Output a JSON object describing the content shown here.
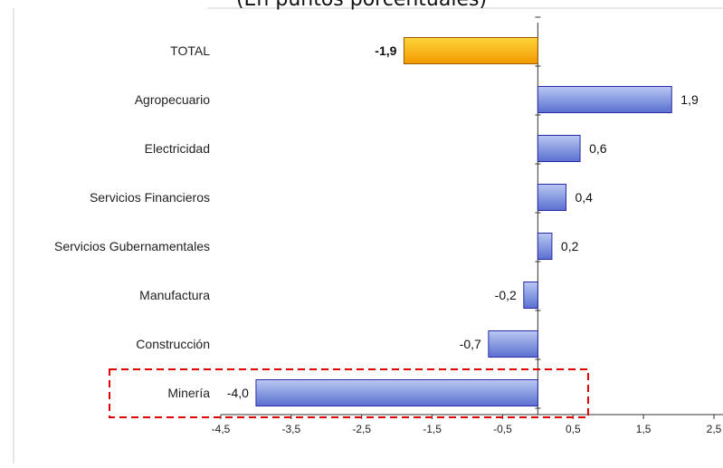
{
  "chart_data": {
    "type": "bar",
    "orientation": "horizontal",
    "title": "(En puntos porcentuales)",
    "categories": [
      "TOTAL",
      "Agropecuario",
      "Electricidad",
      "Servicios Financieros",
      "Servicios Gubernamentales",
      "Manufactura",
      "Construcción",
      "Minería"
    ],
    "values": [
      -1.9,
      1.9,
      0.6,
      0.4,
      0.2,
      -0.2,
      -0.7,
      -4.0
    ],
    "value_labels": [
      "-1,9",
      "1,9",
      "0,6",
      "0,4",
      "0,2",
      "-0,2",
      "-0,7",
      "-4,0"
    ],
    "highlight_category": "TOTAL",
    "highlighted_box_category": "Minería",
    "xlim": [
      -4.5,
      2.5
    ],
    "xticks": [
      -4.5,
      -3.5,
      -2.5,
      -1.5,
      -0.5,
      0.5,
      1.5,
      2.5
    ],
    "xtick_labels": [
      "-4,5",
      "-3,5",
      "-2,5",
      "-1,5",
      "-0,5",
      "0,5",
      "1,5",
      "2,5"
    ],
    "xlabel": "",
    "ylabel": "",
    "grid": false,
    "colors": {
      "bar_fill_top": "#b9c8f2",
      "bar_fill_bottom": "#5a6fd0",
      "bar_stroke": "#2a2aa8",
      "total_fill_top": "#ffd53a",
      "total_fill_bottom": "#f29a00",
      "total_stroke": "#9a5a00",
      "highlight_box": "#e00000"
    }
  }
}
